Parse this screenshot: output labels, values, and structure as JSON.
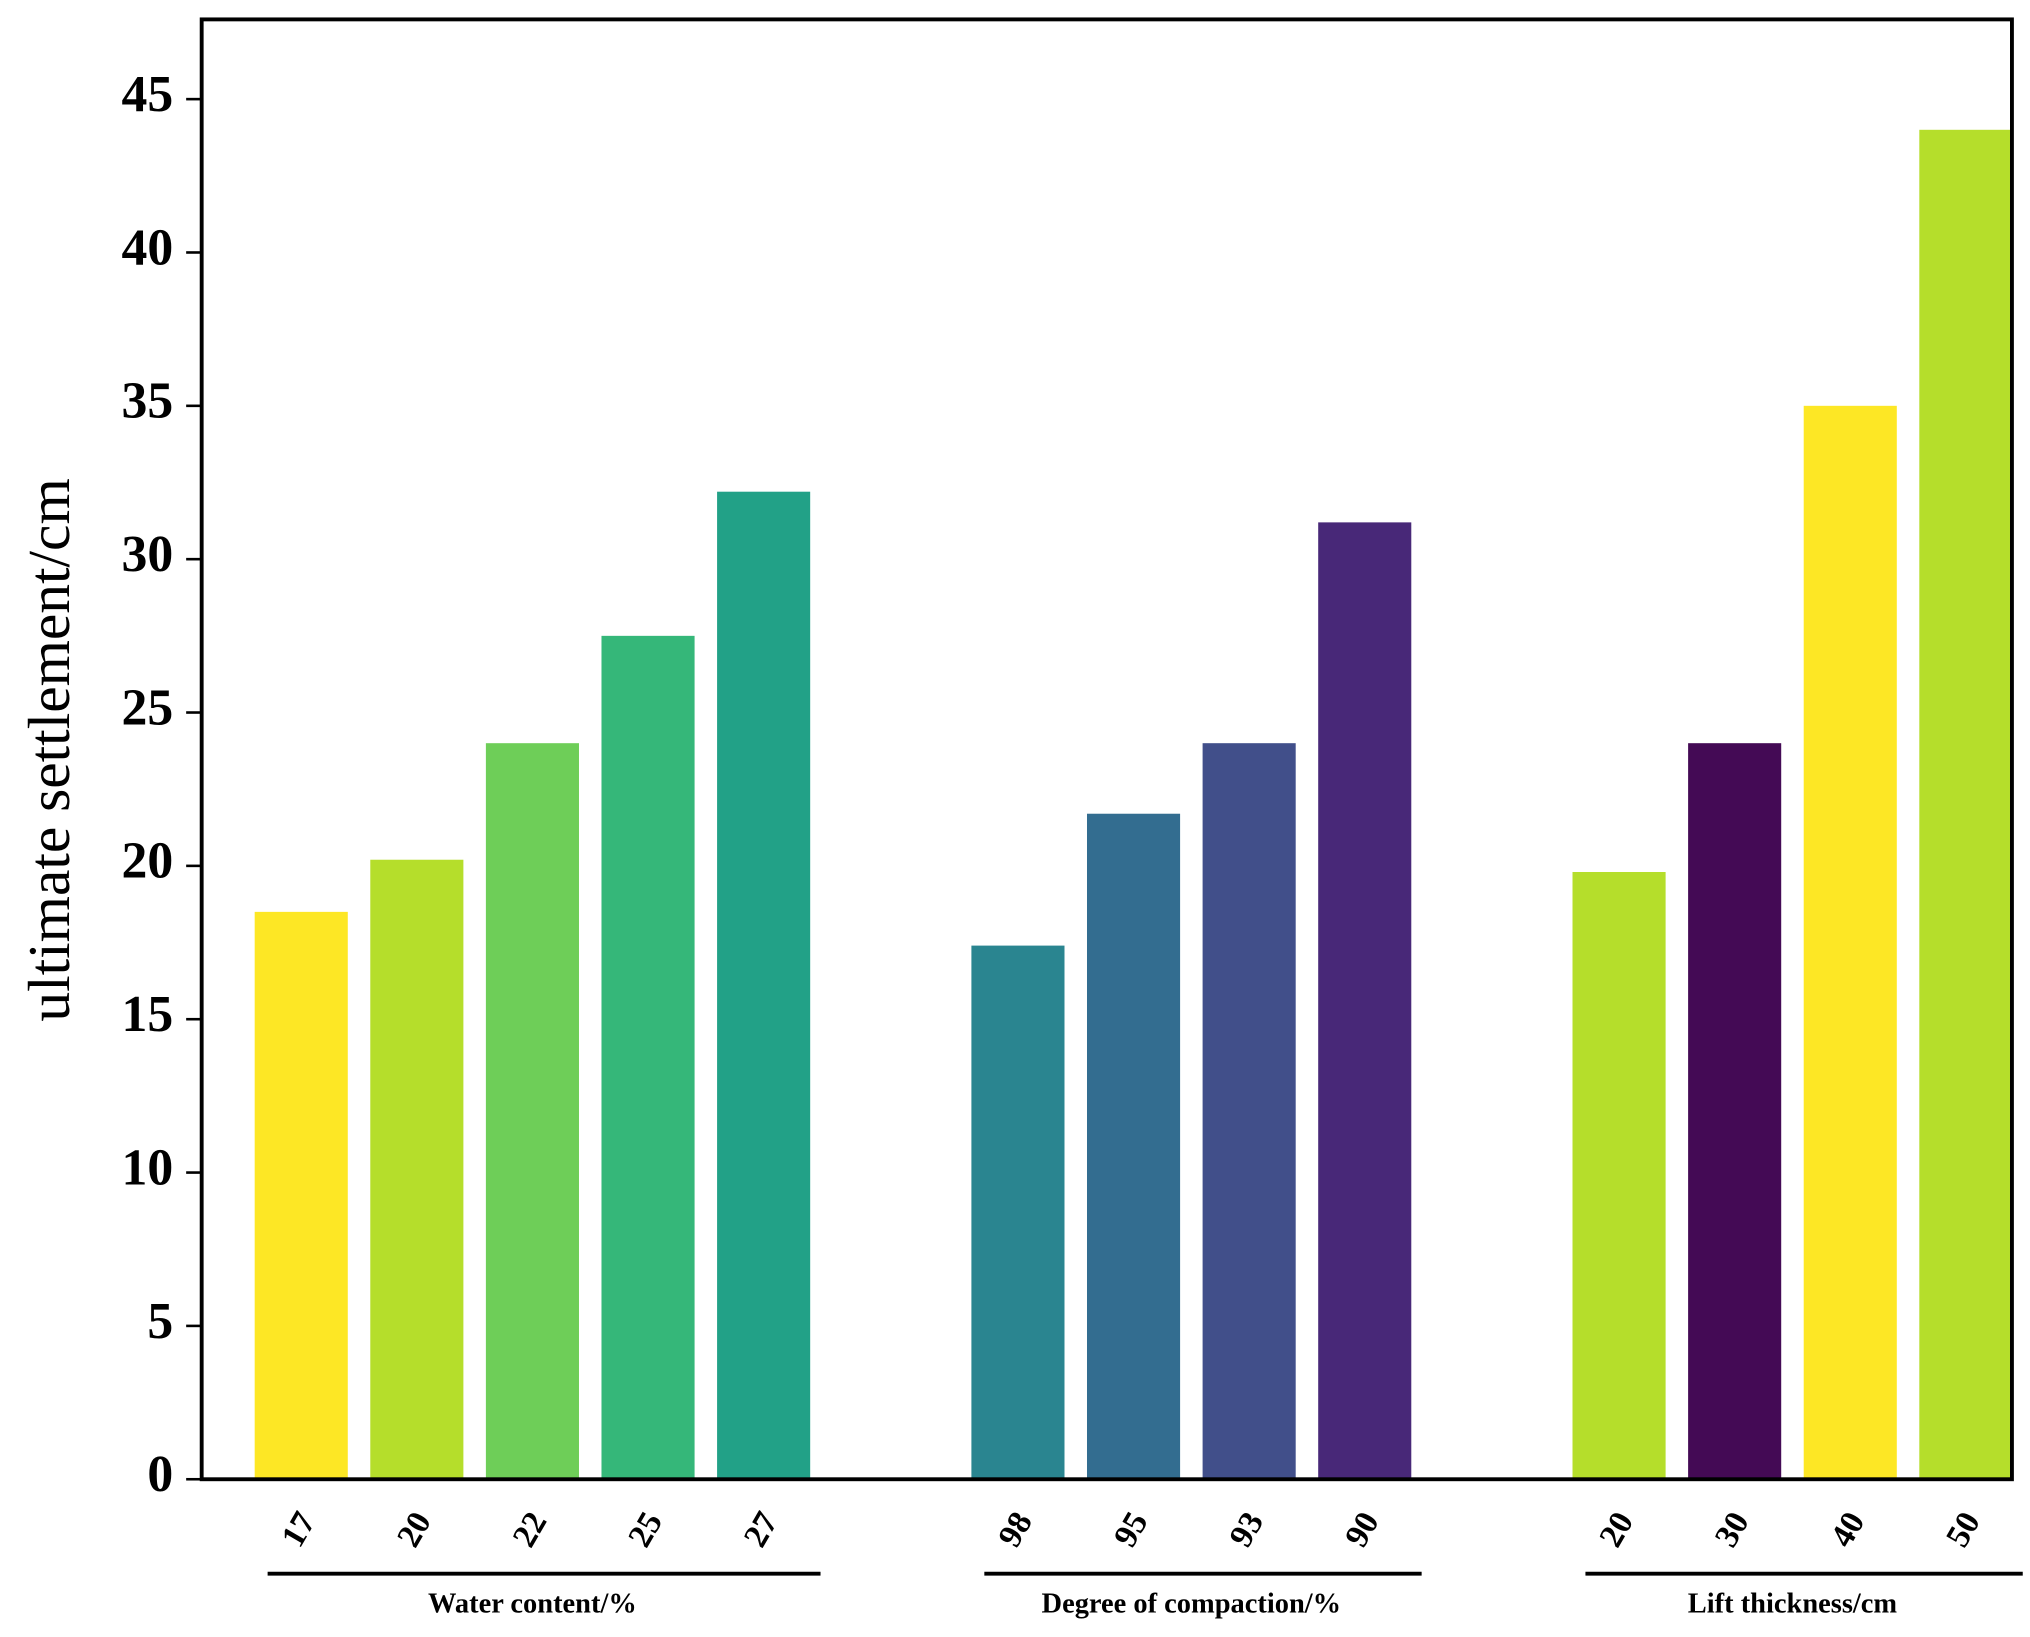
{
  "chart_data": {
    "type": "bar",
    "ylabel": "ultimate settlement/cm",
    "ylim": [
      0,
      47.6
    ],
    "yticks": [
      0,
      5,
      10,
      15,
      20,
      25,
      30,
      35,
      40,
      45
    ],
    "groups": [
      {
        "name": "Water content/%",
        "categories": [
          "17",
          "20",
          "22",
          "25",
          "27"
        ],
        "values": [
          18.5,
          20.2,
          24.0,
          27.5,
          32.2
        ],
        "colors": [
          "#fde725",
          "#b5de2b",
          "#6ece58",
          "#35b779",
          "#22a187"
        ]
      },
      {
        "name": "Degree of compaction/%",
        "categories": [
          "98",
          "95",
          "93",
          "90"
        ],
        "values": [
          17.4,
          21.7,
          24.0,
          31.2
        ],
        "colors": [
          "#2a8590",
          "#336d90",
          "#414f8a",
          "#482878"
        ]
      },
      {
        "name": "Lift thickness/cm",
        "categories": [
          "20",
          "30",
          "40",
          "50"
        ],
        "values": [
          19.8,
          24.0,
          35.0,
          44.0
        ],
        "colors": [
          "#b5de2b",
          "#440a55",
          "#fde725",
          "#b5de2b"
        ]
      }
    ]
  }
}
